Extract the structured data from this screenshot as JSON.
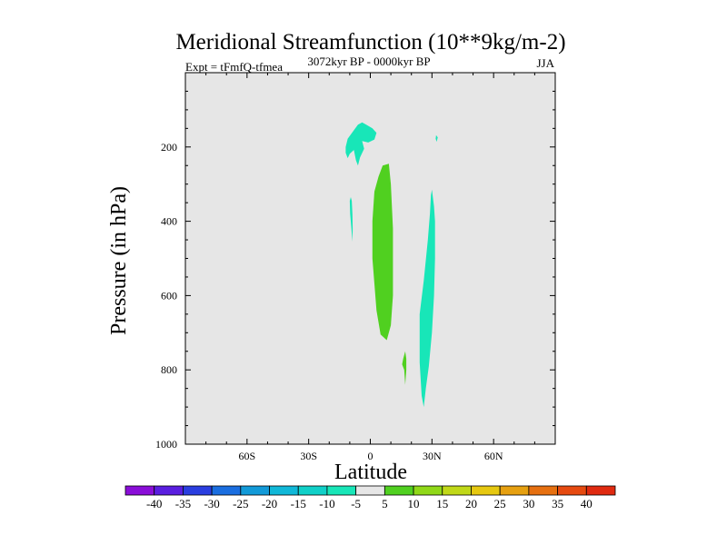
{
  "chart_data": {
    "type": "contour",
    "title": "Meridional Streamfunction (10**9kg/m-2)",
    "subtitle_left": "Expt = tFmfQ-tfmea",
    "subtitle_center": "3072kyr BP - 0000kyr BP",
    "subtitle_right": "JJA",
    "xlabel": "Latitude",
    "ylabel": "Pressure (in hPa)",
    "xlim": [
      -90,
      90
    ],
    "ylim": [
      1000,
      0
    ],
    "x_ticks": [
      {
        "value": -60,
        "label": "60S"
      },
      {
        "value": -30,
        "label": "30S"
      },
      {
        "value": 0,
        "label": "0"
      },
      {
        "value": 30,
        "label": "30N"
      },
      {
        "value": 60,
        "label": "60N"
      }
    ],
    "y_ticks": [
      {
        "value": 200,
        "label": "200"
      },
      {
        "value": 400,
        "label": "400"
      },
      {
        "value": 600,
        "label": "600"
      },
      {
        "value": 800,
        "label": "800"
      },
      {
        "value": 1000,
        "label": "1000"
      }
    ],
    "background_color": "#e6e6e6",
    "colorbar": {
      "levels": [
        -40,
        -35,
        -30,
        -25,
        -20,
        -15,
        -10,
        -5,
        5,
        10,
        15,
        20,
        25,
        30,
        35,
        40
      ],
      "colors": [
        "#8a0ed8",
        "#5a1ee0",
        "#2a3ee0",
        "#1a6ee0",
        "#129ad8",
        "#10b8d8",
        "#10d0c8",
        "#18e6b8",
        "#e6e6e6",
        "#50d020",
        "#90d818",
        "#c0d818",
        "#e6c810",
        "#e6a010",
        "#e67010",
        "#e64a10",
        "#e02a10"
      ]
    },
    "regions": [
      {
        "name": "neg-cell-upper",
        "level": "-10 to -5",
        "color": "#18e6b8",
        "points": [
          [
            -12,
            200
          ],
          [
            -11,
            178
          ],
          [
            -8,
            155
          ],
          [
            -6,
            140
          ],
          [
            -4,
            134
          ],
          [
            -2,
            140
          ],
          [
            1,
            150
          ],
          [
            3,
            162
          ],
          [
            2,
            180
          ],
          [
            -1,
            188
          ],
          [
            -4,
            184
          ],
          [
            -3,
            205
          ],
          [
            -5,
            228
          ],
          [
            -6,
            250
          ],
          [
            -7,
            236
          ],
          [
            -8,
            208
          ],
          [
            -10,
            218
          ],
          [
            -11,
            230
          ],
          [
            -12,
            216
          ]
        ]
      },
      {
        "name": "neg-cell-small-ne",
        "level": "-10 to -5",
        "color": "#18e6b8",
        "points": [
          [
            32,
            168
          ],
          [
            32.8,
            174
          ],
          [
            32.3,
            186
          ],
          [
            31.8,
            178
          ]
        ]
      },
      {
        "name": "neg-cell-sw",
        "level": "-10 to -5",
        "color": "#18e6b8",
        "points": [
          [
            -9.5,
            335
          ],
          [
            -9,
            345
          ],
          [
            -8.7,
            380
          ],
          [
            -8.6,
            420
          ],
          [
            -8.7,
            455
          ],
          [
            -9.2,
            420
          ],
          [
            -9.8,
            380
          ],
          [
            -10,
            345
          ]
        ]
      },
      {
        "name": "pos-cell-tropical",
        "level": "5 to 10",
        "color": "#50d020",
        "points": [
          [
            9,
            245
          ],
          [
            10,
            300
          ],
          [
            11,
            420
          ],
          [
            11,
            600
          ],
          [
            10,
            680
          ],
          [
            8,
            720
          ],
          [
            5,
            705
          ],
          [
            3,
            640
          ],
          [
            1,
            500
          ],
          [
            1,
            400
          ],
          [
            2,
            320
          ],
          [
            4,
            280
          ],
          [
            6,
            250
          ]
        ]
      },
      {
        "name": "neg-cell-nh",
        "level": "-10 to -5",
        "color": "#18e6b8",
        "points": [
          [
            30,
            315
          ],
          [
            31,
            360
          ],
          [
            31.5,
            400
          ],
          [
            31.5,
            500
          ],
          [
            31,
            600
          ],
          [
            30,
            700
          ],
          [
            28.5,
            790
          ],
          [
            27,
            850
          ],
          [
            26,
            900
          ],
          [
            25,
            870
          ],
          [
            24,
            780
          ],
          [
            24,
            650
          ],
          [
            26,
            560
          ],
          [
            28,
            450
          ],
          [
            29,
            380
          ],
          [
            29.5,
            330
          ]
        ]
      },
      {
        "name": "pos-cell-small",
        "level": "5 to 10",
        "color": "#50d020",
        "points": [
          [
            17,
            750
          ],
          [
            17.5,
            770
          ],
          [
            17.5,
            800
          ],
          [
            17,
            840
          ],
          [
            16.5,
            800
          ],
          [
            15.5,
            785
          ],
          [
            16,
            770
          ]
        ]
      }
    ]
  }
}
